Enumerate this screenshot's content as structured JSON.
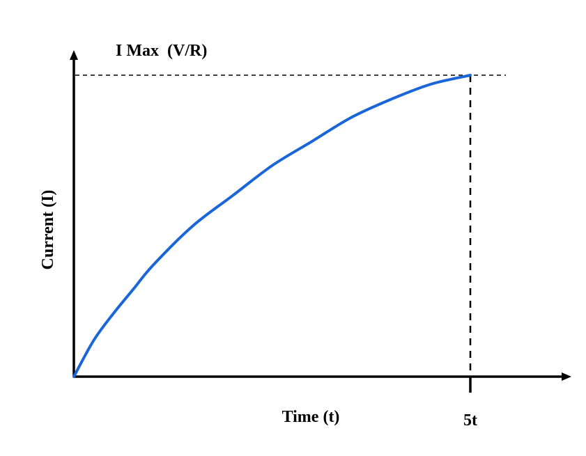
{
  "chart_data": {
    "type": "line",
    "title": "",
    "xlabel": "Time (t)",
    "ylabel": "Current (I)",
    "annotations": {
      "max_label": "I Max  (V/R)",
      "x_tick_label": "5t"
    },
    "xlim": [
      0,
      5
    ],
    "ylim": [
      0,
      1
    ],
    "grid": false,
    "legend": "none",
    "series": [
      {
        "values_x": [
          0,
          0.25,
          0.5,
          0.75,
          1,
          1.5,
          2,
          2.5,
          3,
          3.5,
          4,
          4.5,
          5
        ],
        "values_y": [
          0,
          0.12,
          0.21,
          0.29,
          0.37,
          0.5,
          0.6,
          0.7,
          0.78,
          0.86,
          0.92,
          0.97,
          1.0
        ]
      }
    ],
    "colors": {
      "curve": "#1a66d9",
      "axes": "#000000",
      "guides": "#000000"
    }
  }
}
